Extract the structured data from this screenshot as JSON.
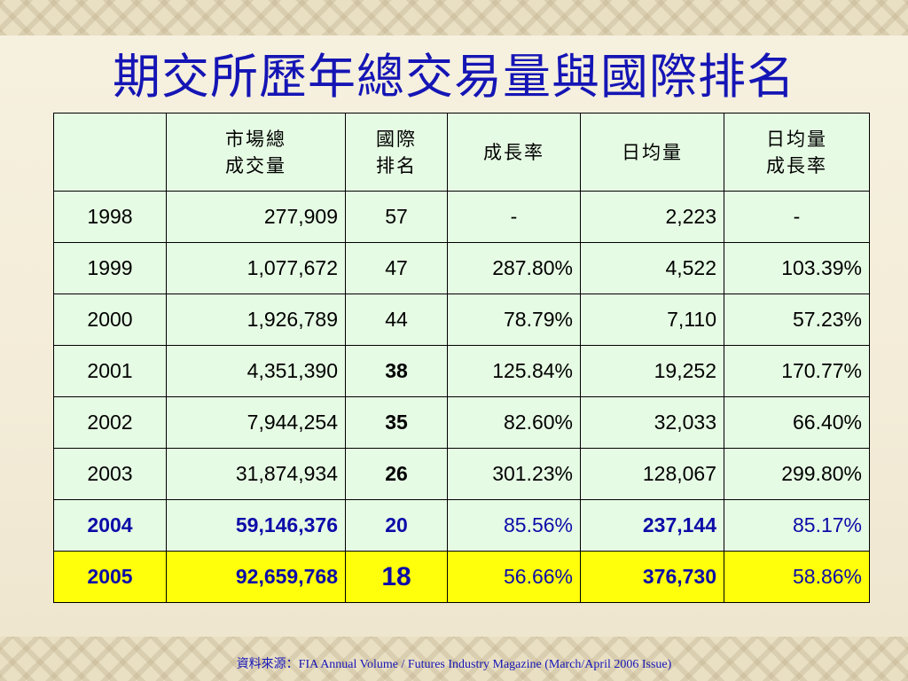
{
  "title": "期交所歷年總交易量與國際排名",
  "table": {
    "headers": [
      {
        "line1": "",
        "line2": ""
      },
      {
        "line1": "市場總",
        "line2": "成交量"
      },
      {
        "line1": "國際",
        "line2": "排名"
      },
      {
        "line1": "成長率",
        "line2": ""
      },
      {
        "line1": "日均量",
        "line2": ""
      },
      {
        "line1": "日均量",
        "line2": "成長率"
      }
    ],
    "rows": [
      {
        "year": "1998",
        "volume": "277,909",
        "rank": "57",
        "growth": "-",
        "daily": "2,223",
        "daily_growth": "-"
      },
      {
        "year": "1999",
        "volume": "1,077,672",
        "rank": "47",
        "growth": "287.80%",
        "daily": "4,522",
        "daily_growth": "103.39%"
      },
      {
        "year": "2000",
        "volume": "1,926,789",
        "rank": "44",
        "growth": "78.79%",
        "daily": "7,110",
        "daily_growth": "57.23%"
      },
      {
        "year": "2001",
        "volume": "4,351,390",
        "rank": "38",
        "growth": "125.84%",
        "daily": "19,252",
        "daily_growth": "170.77%"
      },
      {
        "year": "2002",
        "volume": "7,944,254",
        "rank": "35",
        "growth": "82.60%",
        "daily": "32,033",
        "daily_growth": "66.40%"
      },
      {
        "year": "2003",
        "volume": "31,874,934",
        "rank": "26",
        "growth": "301.23%",
        "daily": "128,067",
        "daily_growth": "299.80%"
      },
      {
        "year": "2004",
        "volume": "59,146,376",
        "rank": "20",
        "growth": "85.56%",
        "daily": "237,144",
        "daily_growth": "85.17%"
      },
      {
        "year": "2005",
        "volume": "92,659,768",
        "rank": "18",
        "growth": "56.66%",
        "daily": "376,730",
        "daily_growth": "58.86%"
      }
    ]
  },
  "source": "資料來源：FIA Annual Volume / Futures Industry Magazine (March/April  2006 Issue)",
  "colors": {
    "title": "#1515b5",
    "table_bg": "#e6fbe4",
    "highlight_row": "#ffff0c",
    "highlight_text": "#0c0ca8",
    "background": "#f3ecd8"
  }
}
